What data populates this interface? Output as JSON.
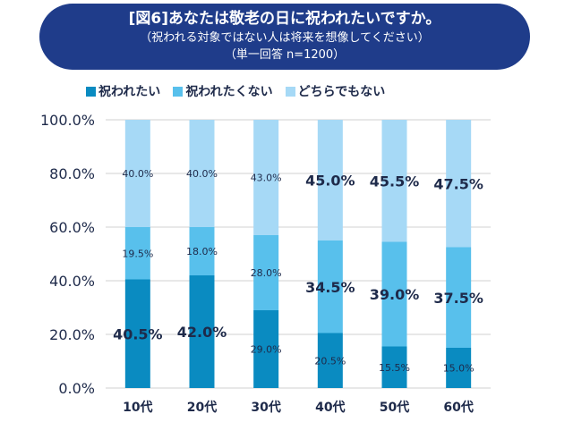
{
  "title": {
    "line1": "[図6]あなたは敬老の日に祝われたいですか。",
    "line2": "（祝われる対象ではない人は将来を想像してください）",
    "line3": "（単一回答 n=1200）"
  },
  "colors": {
    "title_bg": "#1f3c8a",
    "series1": "#0a8bc1",
    "series2": "#58c0ec",
    "series3": "#a6d9f6",
    "grid": "#d0d0d0",
    "text": "#1e2a4a"
  },
  "chart_data": {
    "type": "bar",
    "stacked": true,
    "percent": true,
    "categories": [
      "10代",
      "20代",
      "30代",
      "40代",
      "50代",
      "60代"
    ],
    "series": [
      {
        "name": "祝われたい",
        "values": [
          40.5,
          42.0,
          29.0,
          20.5,
          15.5,
          15.0
        ],
        "labels": [
          "40.5%",
          "42.0%",
          "29.0%",
          "20.5%",
          "15.5%",
          "15.0%"
        ]
      },
      {
        "name": "祝われたくない",
        "values": [
          19.5,
          18.0,
          28.0,
          34.5,
          39.0,
          37.5
        ],
        "labels": [
          "19.5%",
          "18.0%",
          "28.0%",
          "34.5%",
          "39.0%",
          "37.5%"
        ]
      },
      {
        "name": "どちらでもない",
        "values": [
          40.0,
          40.0,
          43.0,
          45.0,
          45.5,
          47.5
        ],
        "labels": [
          "40.0%",
          "40.0%",
          "43.0%",
          "45.0%",
          "45.5%",
          "47.5%"
        ]
      }
    ],
    "ylim": [
      0,
      100
    ],
    "yticks": [
      "0.0%",
      "20.0%",
      "40.0%",
      "60.0%",
      "80.0%",
      "100.0%"
    ],
    "ytick_values": [
      0,
      20,
      40,
      60,
      80,
      100
    ],
    "legend": "top",
    "grid": true,
    "title": "[図6]あなたは敬老の日に祝われたいですか。"
  }
}
